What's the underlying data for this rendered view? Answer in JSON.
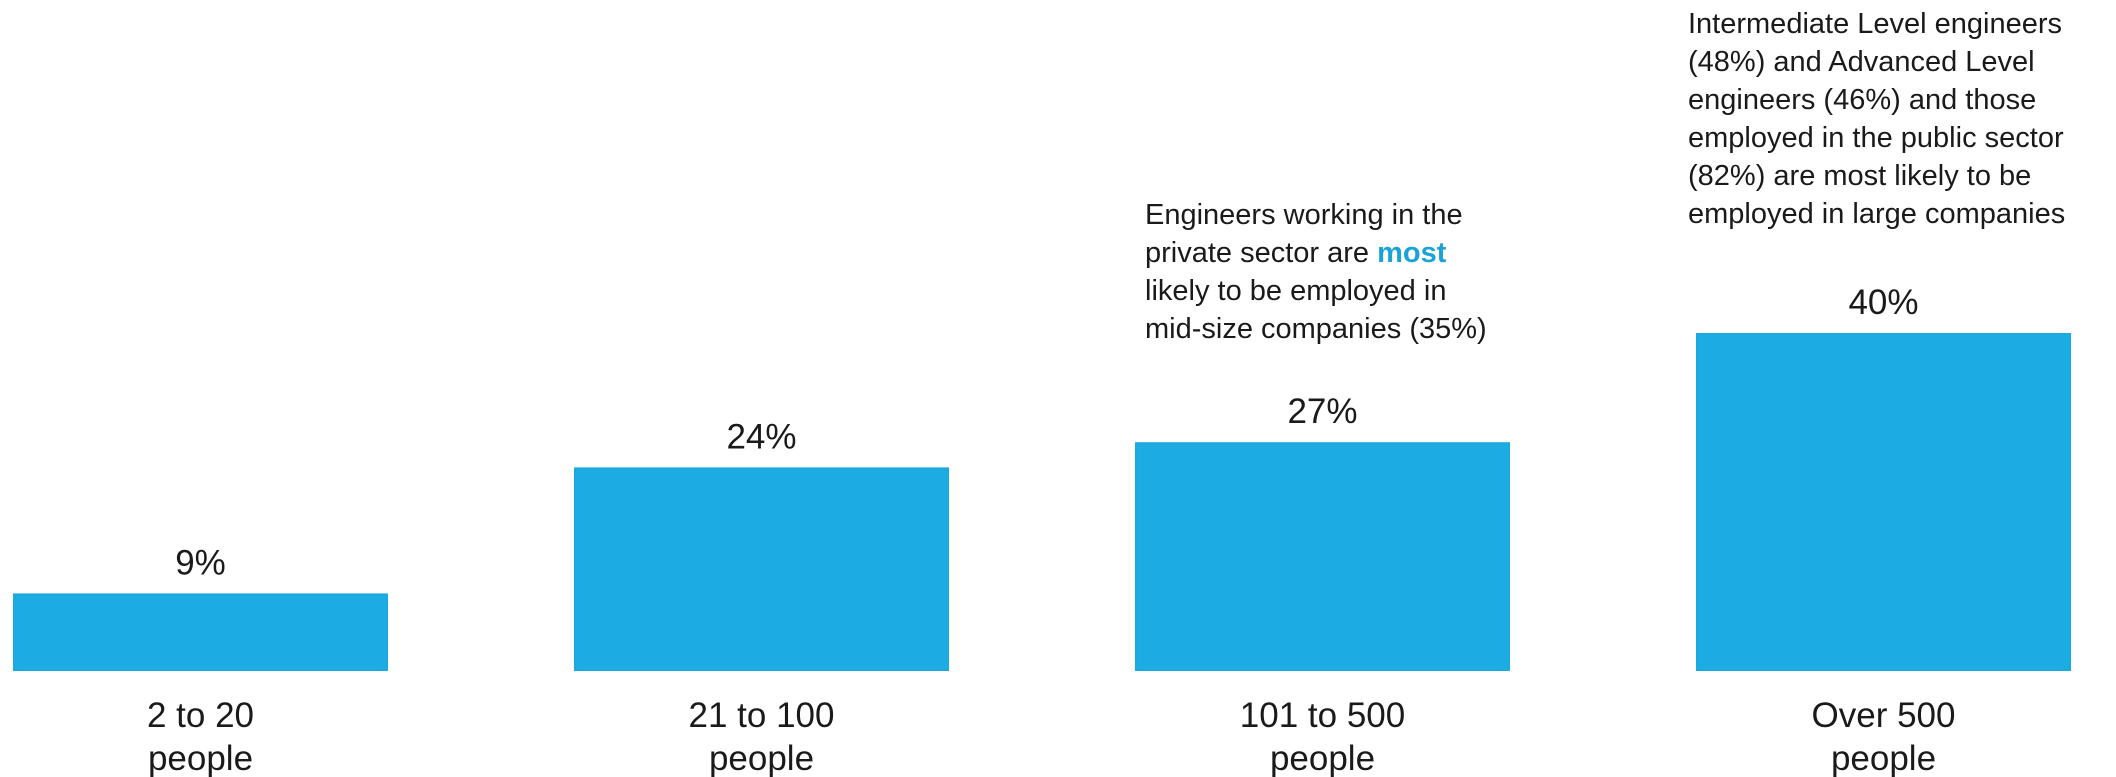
{
  "chart_data": {
    "type": "bar",
    "categories": [
      [
        "2 to 20",
        "people"
      ],
      [
        "21 to 100",
        "people"
      ],
      [
        "101 to 500",
        "people"
      ],
      [
        "Over 500",
        "people"
      ]
    ],
    "values": [
      9,
      24,
      27,
      40
    ],
    "value_labels": [
      "9%",
      "24%",
      "27%",
      "40%"
    ],
    "unit": "%",
    "bar_color": "#1aace2",
    "bar_color_top": "#1ba9df",
    "title": "",
    "xlabel": "",
    "ylabel": "",
    "ylim": [
      0,
      40
    ],
    "grid": false,
    "legend": "none",
    "annotations": {
      "mid": {
        "lines": [
          [
            "Engineers working in the"
          ],
          [
            "private sector are ",
            "most"
          ],
          [
            "likely to be employed in"
          ],
          [
            "mid-size companies (35%)"
          ]
        ],
        "highlight_color": "#1ba3d8"
      },
      "large": {
        "lines": [
          "Intermediate Level engineers",
          "(48%) and Advanced Level",
          "engineers (46%) and those",
          "employed in the public sector",
          "(82%) are most likely to be",
          "employed in large companies"
        ]
      }
    }
  }
}
